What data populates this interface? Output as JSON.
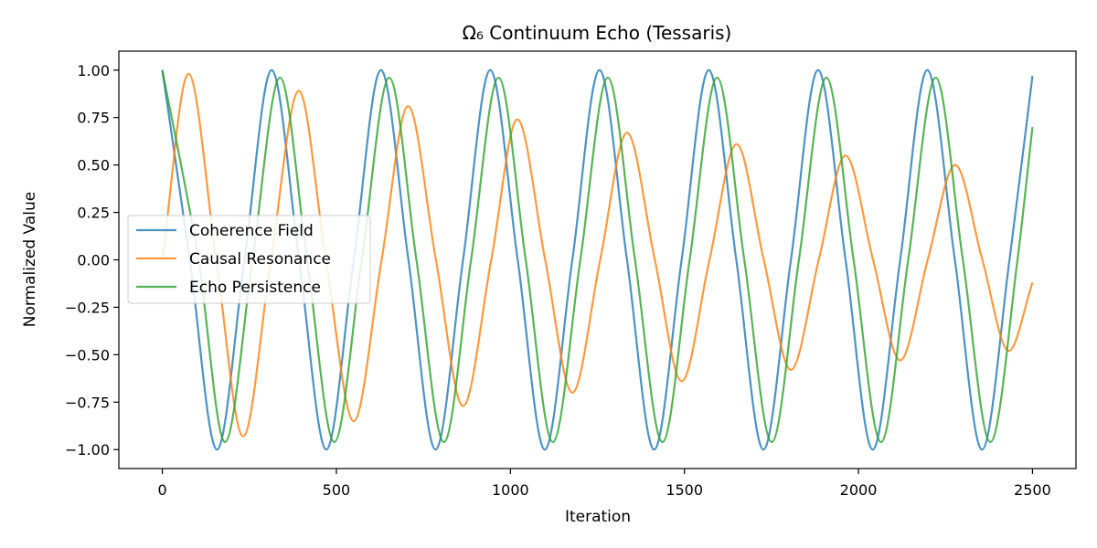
{
  "chart_data": {
    "type": "line",
    "title": "Ω₆ Continuum Echo (Tessaris)",
    "xlabel": "Iteration",
    "ylabel": "Normalized Value",
    "xlim": [
      -125,
      2625
    ],
    "ylim": [
      -1.1,
      1.1
    ],
    "xticks": [
      0,
      500,
      1000,
      1500,
      2000,
      2500
    ],
    "yticks": [
      -1.0,
      -0.75,
      -0.5,
      -0.25,
      0.0,
      0.25,
      0.5,
      0.75,
      1.0
    ],
    "xtick_labels": [
      "0",
      "500",
      "1000",
      "1500",
      "2000",
      "2500"
    ],
    "ytick_labels": [
      "−1.00",
      "−0.75",
      "−0.50",
      "−0.25",
      "0.00",
      "0.25",
      "0.50",
      "0.75",
      "1.00"
    ],
    "grid": false,
    "legend_position": "center-left",
    "series": [
      {
        "name": "Coherence Field",
        "color": "#1f77b4",
        "x": [
          0,
          79,
          157,
          236,
          314,
          393,
          471,
          550,
          628,
          707,
          785,
          864,
          942,
          1021,
          1099,
          1178,
          1256,
          1335,
          1413,
          1492,
          1570,
          1649,
          1727,
          1806,
          1884,
          1963,
          2041,
          2120,
          2198,
          2277,
          2355,
          2434,
          2500
        ],
        "y": [
          1.0,
          0.0,
          -1.0,
          0.0,
          1.0,
          0.0,
          -1.0,
          0.0,
          1.0,
          0.0,
          -1.0,
          0.0,
          1.0,
          0.0,
          -1.0,
          0.0,
          1.0,
          0.0,
          -1.0,
          0.0,
          1.0,
          0.0,
          -1.0,
          0.0,
          1.0,
          0.0,
          -1.0,
          0.0,
          1.0,
          0.0,
          -1.0,
          0.0,
          0.97
        ]
      },
      {
        "name": "Causal Resonance",
        "color": "#ff7f0e",
        "x": [
          0,
          75,
          155,
          232,
          312,
          392,
          470,
          550,
          630,
          706,
          786,
          864,
          945,
          1020,
          1100,
          1178,
          1258,
          1335,
          1415,
          1492,
          1572,
          1650,
          1728,
          1806,
          1886,
          1963,
          2042,
          2120,
          2199,
          2278,
          2356,
          2432,
          2500
        ],
        "y": [
          0.0,
          0.98,
          0.0,
          -0.93,
          0.0,
          0.89,
          0.0,
          -0.85,
          0.0,
          0.81,
          0.0,
          -0.77,
          0.0,
          0.74,
          0.0,
          -0.7,
          0.0,
          0.67,
          0.0,
          -0.64,
          0.0,
          0.61,
          0.0,
          -0.58,
          0.0,
          0.55,
          0.0,
          -0.53,
          0.0,
          0.5,
          0.0,
          -0.48,
          -0.12
        ]
      },
      {
        "name": "Echo Persistence",
        "color": "#2ca02c",
        "x": [
          0,
          104,
          180,
          259,
          338,
          416,
          494,
          573,
          652,
          730,
          809,
          887,
          966,
          1044,
          1122,
          1201,
          1280,
          1358,
          1437,
          1515,
          1594,
          1672,
          1751,
          1829,
          1908,
          1986,
          2065,
          2143,
          2222,
          2300,
          2379,
          2457,
          2500
        ],
        "y": [
          1.0,
          0.0,
          -0.96,
          0.0,
          0.96,
          0.0,
          -0.96,
          0.0,
          0.96,
          0.0,
          -0.96,
          0.0,
          0.96,
          0.0,
          -0.96,
          0.0,
          0.96,
          0.0,
          -0.96,
          0.0,
          0.96,
          0.0,
          -0.96,
          0.0,
          0.96,
          0.0,
          -0.96,
          0.0,
          0.96,
          0.0,
          -0.96,
          0.0,
          0.7
        ]
      }
    ]
  }
}
